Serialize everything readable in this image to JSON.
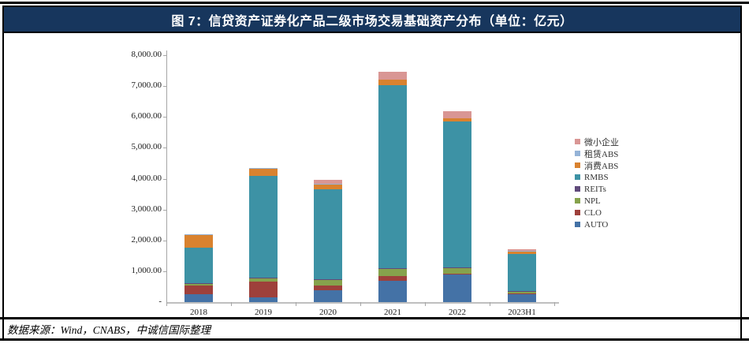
{
  "header": {
    "title": "图 7：信贷资产证券化产品二级市场交易基础资产分布（单位：亿元）",
    "bg_color": "#17365D",
    "text_color": "#FFFFFF"
  },
  "footer": {
    "source": "数据来源：Wind，CNABS，中诚信国际整理"
  },
  "chart_data": {
    "type": "bar",
    "stacked": true,
    "title": "信贷资产证券化产品二级市场交易基础资产分布",
    "unit": "亿元",
    "categories": [
      "2018",
      "2019",
      "2020",
      "2021",
      "2022",
      "2023H1"
    ],
    "series": [
      {
        "name": "AUTO",
        "color": "#4472A6",
        "values": [
          250,
          150,
          375,
          690,
          890,
          260
        ]
      },
      {
        "name": "CLO",
        "color": "#9E403B",
        "values": [
          290,
          510,
          155,
          155,
          20,
          10
        ]
      },
      {
        "name": "NPL",
        "color": "#86A24C",
        "values": [
          65,
          115,
          205,
          240,
          210,
          75
        ]
      },
      {
        "name": "REITs",
        "color": "#604A7B",
        "values": [
          10,
          5,
          5,
          5,
          5,
          5
        ]
      },
      {
        "name": "RMBS",
        "color": "#3D92A5",
        "values": [
          1140,
          3300,
          2920,
          5950,
          4740,
          1210
        ]
      },
      {
        "name": "消费ABS",
        "color": "#D9822F",
        "values": [
          430,
          255,
          170,
          180,
          100,
          75
        ]
      },
      {
        "name": "租赁ABS",
        "color": "#95B3D7",
        "values": [
          25,
          20,
          10,
          0,
          0,
          15
        ]
      },
      {
        "name": "微小企业",
        "color": "#D99694",
        "values": [
          0,
          0,
          130,
          250,
          230,
          70
        ]
      }
    ],
    "totals": [
      2210,
      4355,
      3970,
      7470,
      6195,
      1720
    ],
    "legend_order": [
      "微小企业",
      "租赁ABS",
      "消费ABS",
      "RMBS",
      "REITs",
      "NPL",
      "CLO",
      "AUTO"
    ],
    "legend_position": "right",
    "grid": false,
    "ylim": [
      0,
      8000
    ],
    "y_tick_values": [
      0,
      1000,
      2000,
      3000,
      4000,
      5000,
      6000,
      7000,
      8000
    ],
    "y_tick_labels": [
      "-",
      "1,000.00",
      "2,000.00",
      "3,000.00",
      "4,000.00",
      "5,000.00",
      "6,000.00",
      "7,000.00",
      "8,000.00"
    ]
  }
}
